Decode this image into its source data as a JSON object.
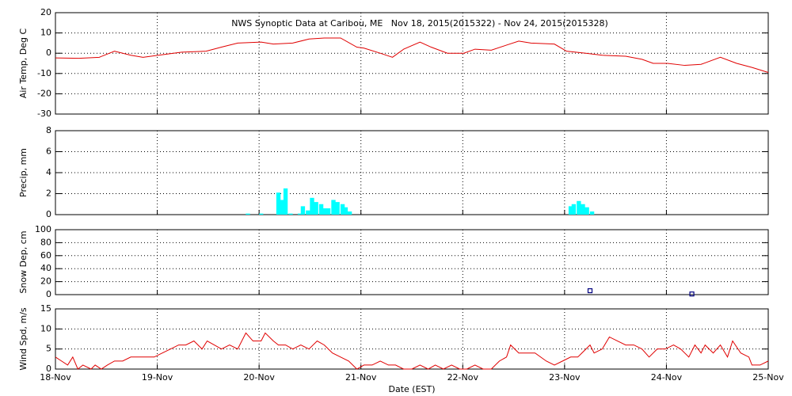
{
  "chart_data": [
    {
      "type": "line",
      "title": "NWS Synoptic Data at Caribou, ME   Nov 18, 2015(2015322) - Nov 24, 2015(2015328)",
      "y_label": "Air Temp, Deg C",
      "color": "#e00000",
      "grid": true,
      "x": [
        0,
        0.23,
        0.43,
        0.58,
        0.74,
        0.86,
        1.01,
        1.24,
        1.48,
        1.63,
        1.79,
        2.02,
        2.14,
        2.33,
        2.49,
        2.64,
        2.8,
        2.96,
        3.03,
        3.19,
        3.31,
        3.42,
        3.58,
        3.69,
        3.85,
        4.01,
        4.12,
        4.28,
        4.43,
        4.55,
        4.67,
        4.9,
        5.02,
        5.21,
        5.37,
        5.6,
        5.76,
        5.87,
        6.01,
        6.18,
        6.34,
        6.53,
        6.69,
        6.84,
        7
      ],
      "values": [
        -2.3,
        -2.5,
        -2,
        1,
        -1,
        -2,
        -1,
        0.5,
        1,
        3,
        5,
        5.5,
        4.5,
        5,
        7,
        7.5,
        7.5,
        3,
        2.5,
        0,
        -2,
        2,
        5.5,
        3,
        0,
        0,
        2,
        1.5,
        4,
        6,
        5,
        4.5,
        1,
        0,
        -1,
        -1.5,
        -3,
        -5,
        -5,
        -6,
        -5.5,
        -2,
        -5,
        -7,
        -9.5
      ],
      "xlim": [
        0,
        7
      ],
      "xticks": [
        1,
        2,
        3,
        4,
        5,
        6
      ],
      "ylim": [
        -30,
        20
      ],
      "yticks": [
        -30,
        -20,
        -10,
        0,
        10,
        20
      ]
    },
    {
      "type": "bar",
      "y_label": "Precip, mm",
      "color": "#00ffff",
      "grid": true,
      "x": [
        1.89,
        2.02,
        2.19,
        2.22,
        2.26,
        2.31,
        2.4,
        2.43,
        2.48,
        2.52,
        2.56,
        2.61,
        2.64,
        2.68,
        2.73,
        2.77,
        2.82,
        2.85,
        2.89,
        5.06,
        5.09,
        5.14,
        5.18,
        5.22,
        5.27
      ],
      "values": [
        0.1,
        0.1,
        2.1,
        1.4,
        2.5,
        0.1,
        0.1,
        0.8,
        0.4,
        1.6,
        1.2,
        1,
        0.6,
        0.6,
        1.4,
        1.2,
        1,
        0.7,
        0.3,
        0.8,
        1,
        1.3,
        1,
        0.7,
        0.3
      ],
      "xlim": [
        0,
        7
      ],
      "xticks": [
        1,
        2,
        3,
        4,
        5,
        6
      ],
      "ylim": [
        0,
        8
      ],
      "yticks": [
        0,
        2,
        4,
        6,
        8
      ]
    },
    {
      "type": "scatter",
      "y_label": "Snow Dep, cm",
      "color": "#000080",
      "grid": true,
      "x": [
        5.25,
        6.25
      ],
      "values": [
        6,
        1
      ],
      "xlim": [
        0,
        7
      ],
      "xticks": [
        1,
        2,
        3,
        4,
        5,
        6
      ],
      "ylim": [
        0,
        100
      ],
      "yticks": [
        0,
        20,
        40,
        60,
        80,
        100
      ]
    },
    {
      "type": "line",
      "y_label": "Wind Spd, m/s",
      "x_label": "Date (EST)",
      "color": "#e00000",
      "grid": true,
      "x": [
        0,
        0.06,
        0.12,
        0.17,
        0.22,
        0.27,
        0.35,
        0.39,
        0.45,
        0.51,
        0.58,
        0.66,
        0.74,
        0.82,
        0.89,
        0.97,
        1.05,
        1.13,
        1.21,
        1.28,
        1.36,
        1.44,
        1.49,
        1.56,
        1.63,
        1.71,
        1.79,
        1.87,
        1.94,
        2.02,
        2.06,
        2.14,
        2.19,
        2.26,
        2.33,
        2.41,
        2.49,
        2.57,
        2.64,
        2.72,
        2.8,
        2.88,
        2.96,
        3.03,
        3.11,
        3.19,
        3.27,
        3.34,
        3.42,
        3.5,
        3.58,
        3.66,
        3.73,
        3.81,
        3.89,
        3.97,
        4.04,
        4.12,
        4.2,
        4.28,
        4.36,
        4.43,
        4.47,
        4.55,
        4.63,
        4.71,
        4.82,
        4.9,
        4.98,
        5.06,
        5.13,
        5.17,
        5.25,
        5.29,
        5.37,
        5.44,
        5.52,
        5.6,
        5.68,
        5.76,
        5.83,
        5.91,
        5.99,
        6.07,
        6.14,
        6.22,
        6.28,
        6.34,
        6.38,
        6.46,
        6.53,
        6.6,
        6.65,
        6.73,
        6.81,
        6.84,
        6.92,
        7
      ],
      "values": [
        3,
        2,
        1,
        3,
        0,
        1,
        0,
        1,
        0,
        1,
        2,
        2,
        3,
        3,
        3,
        3,
        4,
        5,
        6,
        6,
        7,
        5,
        7,
        6,
        5,
        6,
        5,
        9,
        7,
        7,
        9,
        7,
        6,
        6,
        5,
        6,
        5,
        7,
        6,
        4,
        3,
        2,
        0,
        1,
        1,
        2,
        1,
        1,
        0,
        0,
        1,
        0,
        1,
        0,
        1,
        0,
        0,
        1,
        0,
        0,
        2,
        3,
        6,
        4,
        4,
        4,
        2,
        1,
        2,
        3,
        3,
        4,
        6,
        4,
        5,
        8,
        7,
        6,
        6,
        5,
        3,
        5,
        5,
        6,
        5,
        3,
        6,
        4,
        6,
        4,
        6,
        3,
        7,
        4,
        3,
        1,
        1,
        2
      ],
      "xlim": [
        0,
        7
      ],
      "xticks": [
        {
          "value": 0,
          "label": "18-Nov"
        },
        {
          "value": 1,
          "label": "19-Nov"
        },
        {
          "value": 2,
          "label": "20-Nov"
        },
        {
          "value": 3,
          "label": "21-Nov"
        },
        {
          "value": 4,
          "label": "22-Nov"
        },
        {
          "value": 5,
          "label": "23-Nov"
        },
        {
          "value": 6,
          "label": "24-Nov"
        },
        {
          "value": 7,
          "label": "25-Nov"
        }
      ],
      "ylim": [
        0,
        15
      ],
      "yticks": [
        0,
        5,
        10,
        15
      ]
    }
  ]
}
